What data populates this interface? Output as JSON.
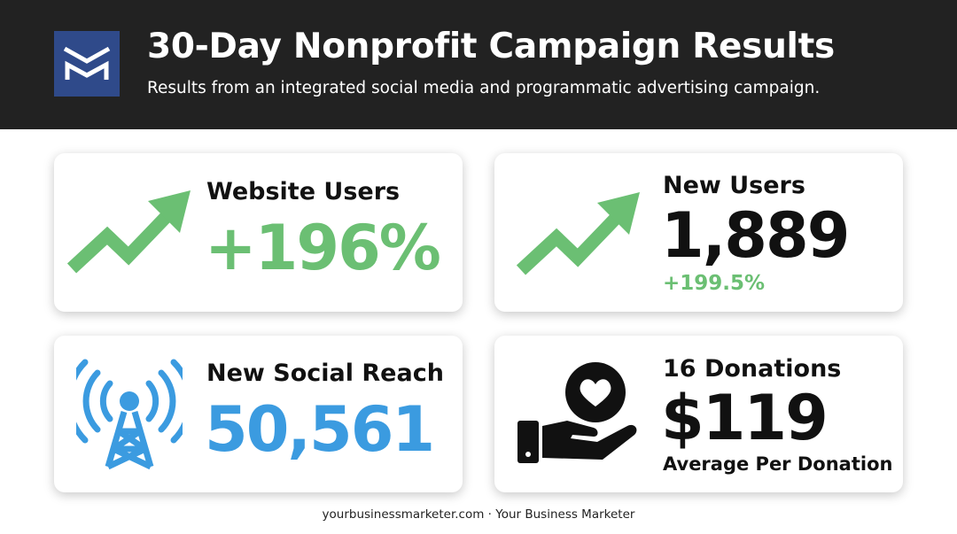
{
  "header": {
    "title": "30-Day Nonprofit Campaign Results",
    "subtitle": "Results from an integrated social media and programmatic advertising campaign.",
    "logo_icon": "m-logo-icon",
    "background": "#222222",
    "logo_color": "#2f4a8a"
  },
  "cards": {
    "website_users": {
      "label": "Website Users",
      "value": "+196%",
      "icon": "trend-up-arrow-icon",
      "color": "#6bbf73"
    },
    "new_users": {
      "label": "New Users",
      "value": "1,889",
      "change": "+199.5%",
      "icon": "trend-up-arrow-icon",
      "change_color": "#6bbf73"
    },
    "social_reach": {
      "label": "New Social Reach",
      "value": "50,561",
      "icon": "broadcast-tower-icon",
      "color": "#3b9be0"
    },
    "donations": {
      "label": "16 Donations",
      "value": "$119",
      "caption": "Average Per Donation",
      "icon": "hand-heart-donation-icon"
    }
  },
  "footer": {
    "text": "yourbusinessmarketer.com · Your Business Marketer"
  }
}
